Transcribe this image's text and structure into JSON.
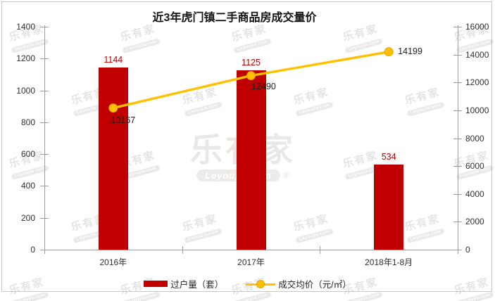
{
  "watermark": {
    "text": "乐有家",
    "subtext": "Leyoujia.com",
    "logo_text": "乐有家",
    "logo_subtext": "Leyoujia.com",
    "registered": "®"
  },
  "chart_data": {
    "type": "bar",
    "title": "近3年虎门镇二手商品房成交量价",
    "categories": [
      "2016年",
      "2017年",
      "2018年1-8月"
    ],
    "series": [
      {
        "name": "过户量（套）",
        "type": "bar",
        "axis": "left",
        "values": [
          1144,
          1125,
          534
        ],
        "color": "#C00000",
        "label_color": "#C00000"
      },
      {
        "name": "成交均价（元/㎡）",
        "type": "line",
        "axis": "right",
        "values": [
          10167,
          12490,
          14199
        ],
        "color": "#FFC000",
        "marker_stroke": "#E8A300",
        "label_color": "#1F1F1F"
      }
    ],
    "left_axis": {
      "min": 0,
      "max": 1400,
      "step": 200,
      "ticks": [
        "0",
        "200",
        "400",
        "600",
        "800",
        "1000",
        "1200",
        "1400"
      ]
    },
    "right_axis": {
      "min": 0,
      "max": 16000,
      "step": 2000,
      "ticks": [
        "0",
        "2000",
        "4000",
        "6000",
        "8000",
        "10000",
        "12000",
        "14000",
        "16000"
      ]
    },
    "grid": false,
    "legend_position": "bottom",
    "axis_color": "#9C9C9C"
  }
}
